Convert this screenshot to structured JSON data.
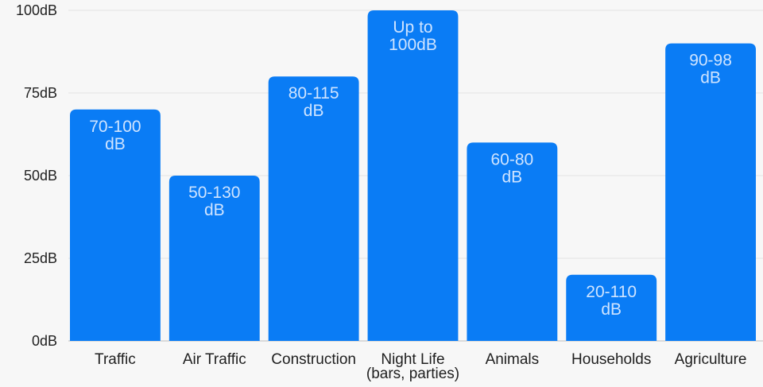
{
  "chart_data": {
    "type": "bar",
    "title": "",
    "xlabel": "",
    "ylabel": "",
    "ylim": [
      0,
      100
    ],
    "ytick_labels": [
      "0dB",
      "25dB",
      "50dB",
      "75dB",
      "100dB"
    ],
    "yticks": [
      0,
      25,
      50,
      75,
      100
    ],
    "grid": true,
    "legend": "none",
    "colors": {
      "bar": "#0a7cf5",
      "grid": "#e3e3e3",
      "background": "#f7f7f7",
      "data_label": "#cfe4ff",
      "axis_text": "#1f1f1f"
    },
    "categories": [
      [
        "Traffic"
      ],
      [
        "Air Traffic"
      ],
      [
        "Construction"
      ],
      [
        "Night Life",
        "(bars, parties)"
      ],
      [
        "Animals"
      ],
      [
        "Households"
      ],
      [
        "Agriculture"
      ]
    ],
    "values": [
      70,
      50,
      80,
      100,
      60,
      20,
      90
    ],
    "data_labels": [
      [
        "70-100",
        "dB"
      ],
      [
        "50-130",
        "dB"
      ],
      [
        "80-115",
        "dB"
      ],
      [
        "Up to",
        "100dB"
      ],
      [
        "60-80",
        "dB"
      ],
      [
        "20-110",
        "dB"
      ],
      [
        "90-98",
        "dB"
      ]
    ]
  }
}
